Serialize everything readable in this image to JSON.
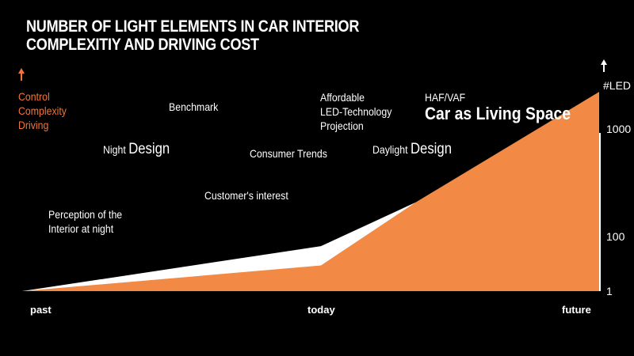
{
  "title_line1": "NUMBER OF LIGHT ELEMENTS IN CAR INTERIOR",
  "title_line2": "COMPLEXITIY AND DRIVING COST",
  "colors": {
    "orange": "#f28a45",
    "white": "#ffffff",
    "label_orange": "#f0763a",
    "background": "#000000"
  },
  "chart_data": {
    "type": "area",
    "title": "NUMBER OF LIGHT ELEMENTS IN CAR INTERIOR COMPLEXITIY AND DRIVING COST",
    "xlabel": "",
    "ylabel": "#LED",
    "left_axis_label": [
      "Control",
      "Complexity",
      "Driving"
    ],
    "x_ticks": [
      {
        "x": 0,
        "label": "past"
      },
      {
        "x": 1,
        "label": "today"
      },
      {
        "x": 2,
        "label": "future"
      }
    ],
    "y_ticks": [
      1,
      100,
      1000
    ],
    "y_scale": "log",
    "series": [
      {
        "name": "white",
        "color": "#ffffff",
        "points": [
          [
            0,
            1
          ],
          [
            1,
            47
          ],
          [
            1.34,
            210
          ]
        ]
      },
      {
        "name": "orange",
        "color": "#f28a45",
        "points": [
          [
            0,
            1
          ],
          [
            1,
            9
          ],
          [
            1.34,
            210
          ],
          [
            2,
            2200
          ]
        ]
      }
    ],
    "annotations": {
      "perception": [
        "Perception of the",
        "Interior at night"
      ],
      "night_small": "Night",
      "night_big": "Design",
      "benchmark": "Benchmark",
      "customer": "Customer's interest",
      "consumer": "Consumer Trends",
      "affordable": [
        "Affordable",
        "LED-Technology",
        "Projection"
      ],
      "daylight_small": "Daylight",
      "daylight_big": "Design",
      "haf": "HAF/VAF",
      "living": "Car as Living Space"
    }
  }
}
